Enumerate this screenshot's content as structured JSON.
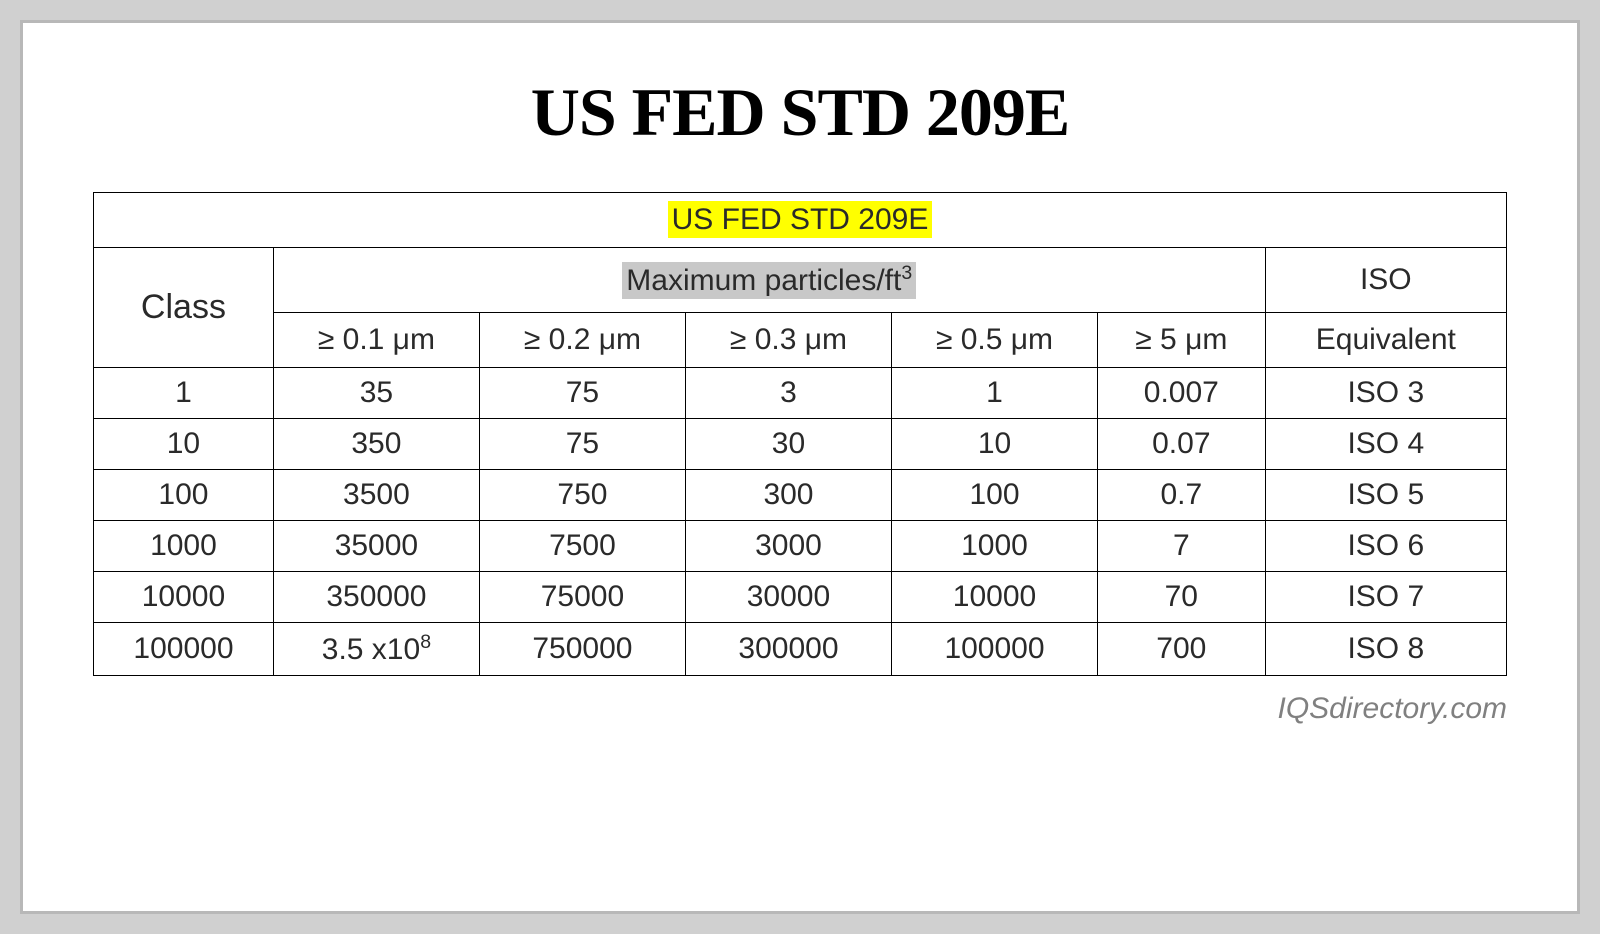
{
  "title": "US FED STD 209E",
  "table": {
    "caption": "US FED STD 209E",
    "header": {
      "class_label": "Class",
      "particles_label": "Maximum particles/ft³",
      "iso_label_top": "ISO",
      "iso_label_bottom": "Equivalent",
      "size_columns": [
        "≥ 0.1 μm",
        "≥ 0.2 μm",
        "≥ 0.3 μm",
        "≥ 0.5 μm",
        "≥ 5 μm"
      ]
    },
    "rows": [
      {
        "class": "1",
        "values": [
          "35",
          "75",
          "3",
          "1",
          "0.007"
        ],
        "iso": "ISO 3"
      },
      {
        "class": "10",
        "values": [
          "350",
          "75",
          "30",
          "10",
          "0.07"
        ],
        "iso": "ISO 4"
      },
      {
        "class": "100",
        "values": [
          "3500",
          "750",
          "300",
          "100",
          "0.7"
        ],
        "iso": "ISO 5"
      },
      {
        "class": "1000",
        "values": [
          "35000",
          "7500",
          "3000",
          "1000",
          "7"
        ],
        "iso": "ISO 6"
      },
      {
        "class": "10000",
        "values": [
          "350000",
          "75000",
          "30000",
          "10000",
          "70"
        ],
        "iso": "ISO 7"
      },
      {
        "class": "100000",
        "values": [
          "3.5 x10⁸",
          "750000",
          "300000",
          "100000",
          "700"
        ],
        "iso": "ISO 8"
      }
    ]
  },
  "attribution": "IQSdirectory.com",
  "styling": {
    "outer_background": "#d0d0d0",
    "inner_background": "#ffffff",
    "border_color": "#b8b8b8",
    "table_border": "#000000",
    "highlight_color": "#ffff00",
    "gray_highlight": "#c8c8c8",
    "text_color": "#2a2a2a",
    "attribution_color": "#808080",
    "title_fontsize": 68,
    "table_fontsize": 30,
    "class_fontsize": 34
  }
}
